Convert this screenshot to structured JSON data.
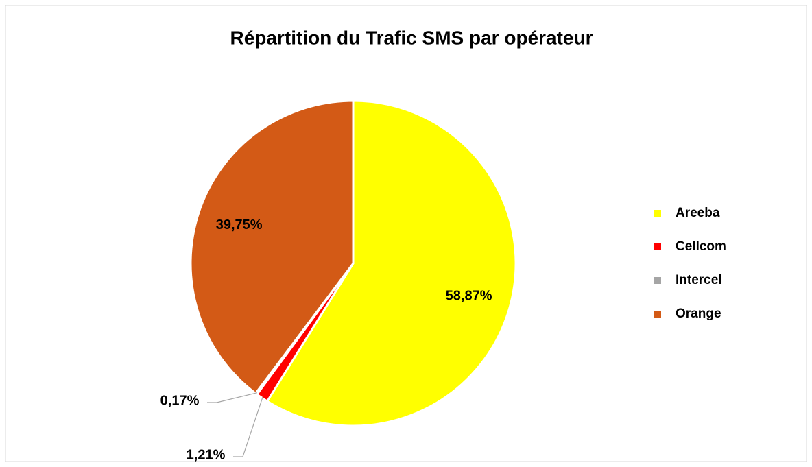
{
  "chart_data": {
    "type": "pie",
    "title": "Répartition du Trafic SMS par opérateur",
    "categories": [
      "Areeba",
      "Cellcom",
      "Intercel",
      "Orange"
    ],
    "values": [
      58.87,
      1.21,
      0.17,
      39.75
    ],
    "value_labels": [
      "58,87%",
      "1,21%",
      "0,17%",
      "39,75%"
    ],
    "colors": [
      "#ffff00",
      "#ff0000",
      "#a5a5a5",
      "#d35a16"
    ],
    "legend": "right"
  }
}
